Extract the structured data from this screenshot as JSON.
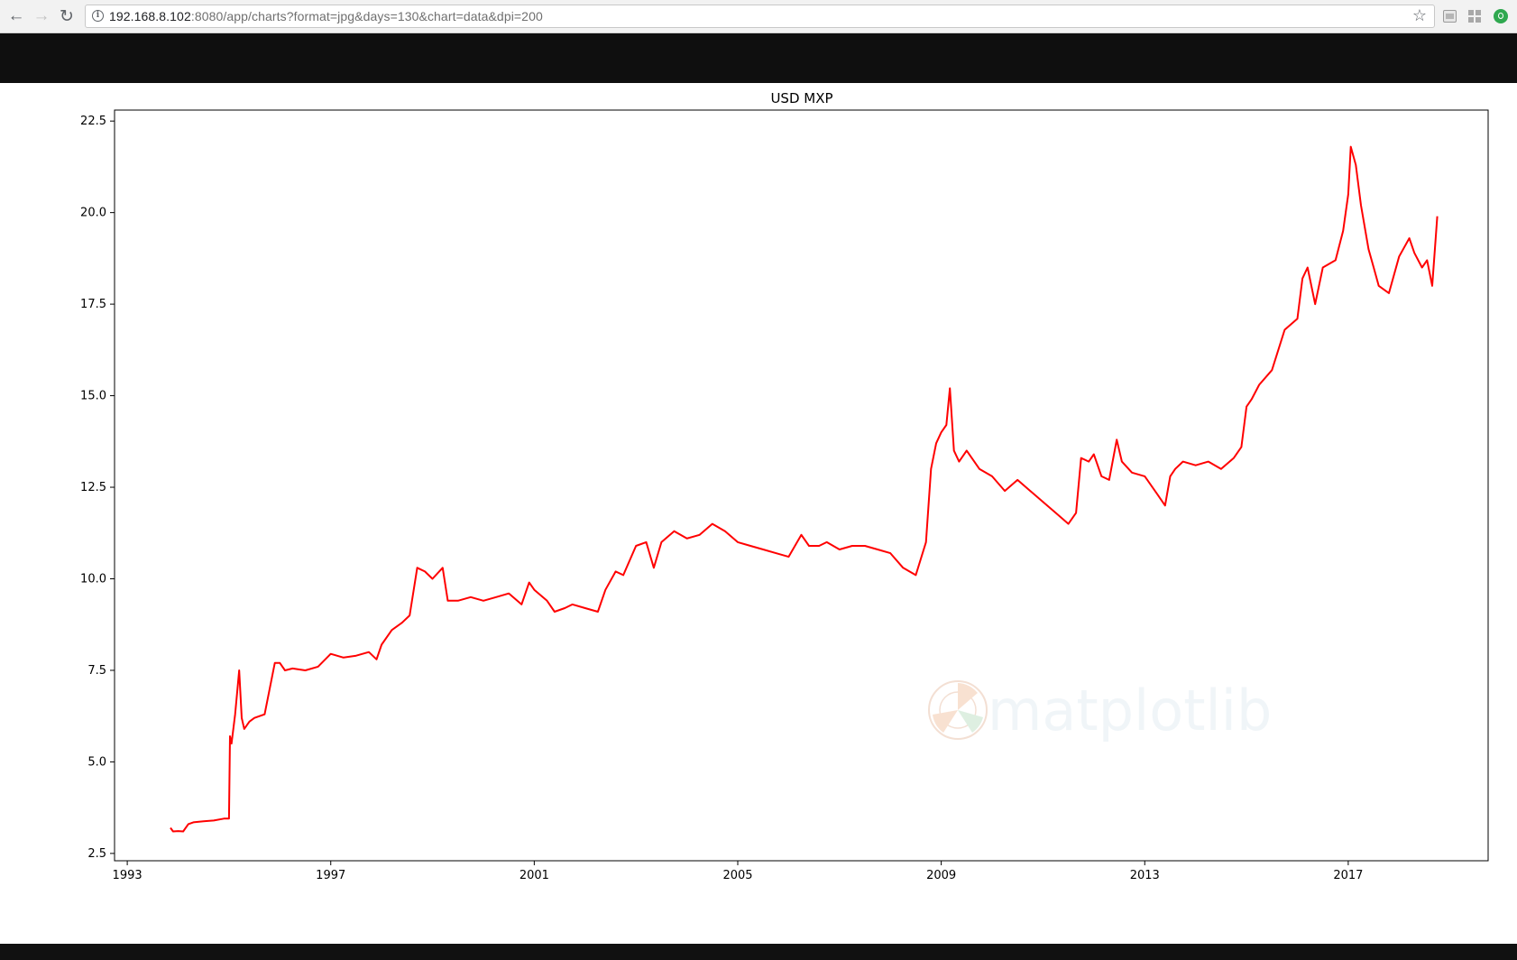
{
  "browser": {
    "url_host": "192.168.8.102",
    "url_rest": ":8080/app/charts?format=jpg&days=130&chart=data&dpi=200"
  },
  "chart_data": {
    "type": "line",
    "title": "USD MXP",
    "xlabel": "",
    "ylabel": "",
    "xlim": [
      1992.75,
      2019.75
    ],
    "ylim": [
      2.3,
      22.8
    ],
    "yticks": [
      2.5,
      5.0,
      7.5,
      10.0,
      12.5,
      15.0,
      17.5,
      20.0,
      22.5
    ],
    "xticks": [
      1993,
      1997,
      2001,
      2005,
      2009,
      2013,
      2017
    ],
    "grid": false,
    "legend": "none",
    "watermark": "matplotlib",
    "series": [
      {
        "color": "#ff0000",
        "x": [
          1993.85,
          1993.9,
          1994.0,
          1994.1,
          1994.2,
          1994.3,
          1994.5,
          1994.7,
          1994.9,
          1995.0,
          1995.02,
          1995.05,
          1995.12,
          1995.2,
          1995.25,
          1995.3,
          1995.4,
          1995.5,
          1995.7,
          1995.9,
          1996.0,
          1996.1,
          1996.25,
          1996.5,
          1996.75,
          1997.0,
          1997.25,
          1997.5,
          1997.75,
          1997.9,
          1998.0,
          1998.2,
          1998.4,
          1998.55,
          1998.7,
          1998.85,
          1999.0,
          1999.2,
          1999.3,
          1999.5,
          1999.75,
          2000.0,
          2000.25,
          2000.5,
          2000.75,
          2000.9,
          2001.0,
          2001.25,
          2001.4,
          2001.6,
          2001.75,
          2002.0,
          2002.25,
          2002.4,
          2002.6,
          2002.75,
          2003.0,
          2003.2,
          2003.35,
          2003.5,
          2003.75,
          2004.0,
          2004.25,
          2004.5,
          2004.75,
          2005.0,
          2005.25,
          2005.5,
          2005.75,
          2006.0,
          2006.25,
          2006.4,
          2006.6,
          2006.75,
          2007.0,
          2007.25,
          2007.5,
          2007.75,
          2008.0,
          2008.25,
          2008.5,
          2008.7,
          2008.8,
          2008.9,
          2009.0,
          2009.1,
          2009.17,
          2009.25,
          2009.35,
          2009.5,
          2009.75,
          2010.0,
          2010.25,
          2010.5,
          2010.75,
          2011.0,
          2011.25,
          2011.5,
          2011.65,
          2011.75,
          2011.9,
          2012.0,
          2012.15,
          2012.3,
          2012.45,
          2012.55,
          2012.75,
          2013.0,
          2013.25,
          2013.4,
          2013.5,
          2013.6,
          2013.75,
          2014.0,
          2014.25,
          2014.5,
          2014.75,
          2014.9,
          2015.0,
          2015.1,
          2015.25,
          2015.5,
          2015.75,
          2016.0,
          2016.1,
          2016.2,
          2016.35,
          2016.5,
          2016.75,
          2016.9,
          2017.0,
          2017.05,
          2017.15,
          2017.25,
          2017.4,
          2017.5,
          2017.6,
          2017.8,
          2018.0,
          2018.2,
          2018.3,
          2018.45,
          2018.55,
          2018.65,
          2018.75
        ],
        "y": [
          3.2,
          3.1,
          3.11,
          3.1,
          3.3,
          3.35,
          3.38,
          3.4,
          3.45,
          3.45,
          5.7,
          5.5,
          6.3,
          7.5,
          6.2,
          5.9,
          6.1,
          6.2,
          6.3,
          7.7,
          7.7,
          7.5,
          7.55,
          7.5,
          7.6,
          7.95,
          7.85,
          7.9,
          8.0,
          7.8,
          8.2,
          8.6,
          8.8,
          9.0,
          10.3,
          10.2,
          10.0,
          10.3,
          9.4,
          9.4,
          9.5,
          9.4,
          9.5,
          9.6,
          9.3,
          9.9,
          9.7,
          9.4,
          9.1,
          9.2,
          9.3,
          9.2,
          9.1,
          9.7,
          10.2,
          10.1,
          10.9,
          11.0,
          10.3,
          11.0,
          11.3,
          11.1,
          11.2,
          11.5,
          11.3,
          11.0,
          10.9,
          10.8,
          10.7,
          10.6,
          11.2,
          10.9,
          10.9,
          11.0,
          10.8,
          10.9,
          10.9,
          10.8,
          10.7,
          10.3,
          10.1,
          11.0,
          13.0,
          13.7,
          14.0,
          14.2,
          15.2,
          13.5,
          13.2,
          13.5,
          13.0,
          12.8,
          12.4,
          12.7,
          12.4,
          12.1,
          11.8,
          11.5,
          11.8,
          13.3,
          13.2,
          13.4,
          12.8,
          12.7,
          13.8,
          13.2,
          12.9,
          12.8,
          12.3,
          12.0,
          12.8,
          13.0,
          13.2,
          13.1,
          13.2,
          13.0,
          13.3,
          13.6,
          14.7,
          14.9,
          15.3,
          15.7,
          16.8,
          17.1,
          18.2,
          18.5,
          17.5,
          18.5,
          18.7,
          19.5,
          20.5,
          21.8,
          21.3,
          20.2,
          19.0,
          18.5,
          18.0,
          17.8,
          18.8,
          19.3,
          18.9,
          18.5,
          18.7,
          18.0,
          19.9
        ]
      }
    ]
  }
}
